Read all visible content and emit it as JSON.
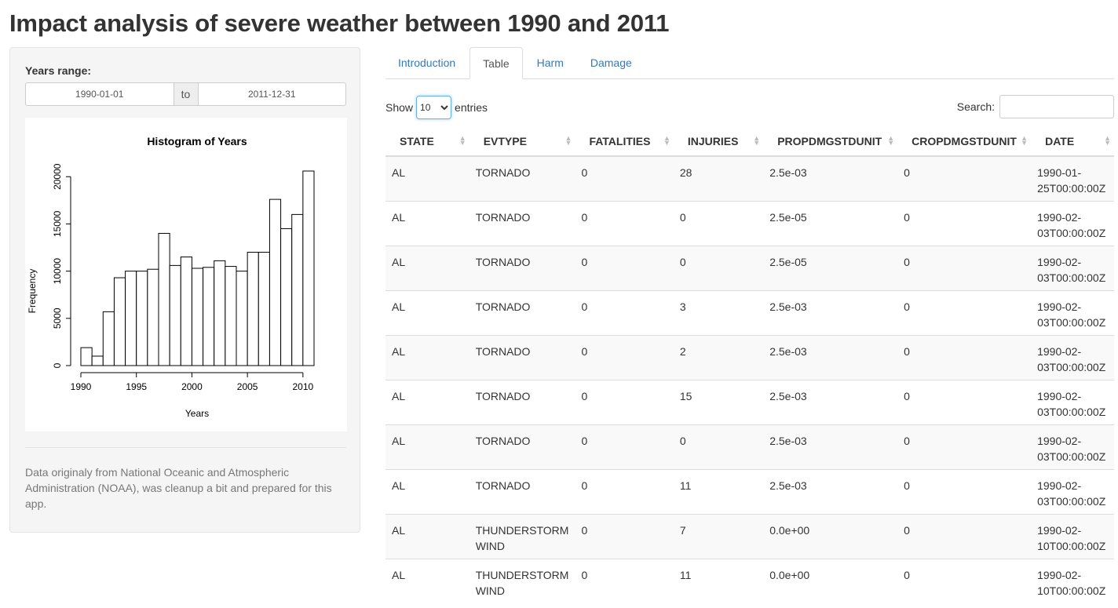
{
  "title": "Impact analysis of severe weather between 1990 and 2011",
  "sidebar": {
    "years_label": "Years range:",
    "start_date": "1990-01-01",
    "separator": "to",
    "end_date": "2011-12-31",
    "note": "Data originaly from National Oceanic and Atmospheric Administration (NOAA), was cleanup a bit and prepared for this app."
  },
  "tabs": [
    {
      "label": "Introduction",
      "active": false
    },
    {
      "label": "Table",
      "active": true
    },
    {
      "label": "Harm",
      "active": false
    },
    {
      "label": "Damage",
      "active": false
    }
  ],
  "controls": {
    "show_label": "Show",
    "page_length": "10",
    "entries_label": "entries",
    "search_label": "Search:",
    "search_value": ""
  },
  "table": {
    "columns": [
      "STATE",
      "EVTYPE",
      "FATALITIES",
      "INJURIES",
      "PROPDMGSTDUNIT",
      "CROPDMGSTDUNIT",
      "DATE"
    ],
    "rows": [
      [
        "AL",
        "TORNADO",
        "0",
        "28",
        "2.5e-03",
        "0",
        "1990-01-25T00:00:00Z"
      ],
      [
        "AL",
        "TORNADO",
        "0",
        "0",
        "2.5e-05",
        "0",
        "1990-02-03T00:00:00Z"
      ],
      [
        "AL",
        "TORNADO",
        "0",
        "0",
        "2.5e-05",
        "0",
        "1990-02-03T00:00:00Z"
      ],
      [
        "AL",
        "TORNADO",
        "0",
        "3",
        "2.5e-03",
        "0",
        "1990-02-03T00:00:00Z"
      ],
      [
        "AL",
        "TORNADO",
        "0",
        "2",
        "2.5e-03",
        "0",
        "1990-02-03T00:00:00Z"
      ],
      [
        "AL",
        "TORNADO",
        "0",
        "15",
        "2.5e-03",
        "0",
        "1990-02-03T00:00:00Z"
      ],
      [
        "AL",
        "TORNADO",
        "0",
        "0",
        "2.5e-03",
        "0",
        "1990-02-03T00:00:00Z"
      ],
      [
        "AL",
        "TORNADO",
        "0",
        "11",
        "2.5e-03",
        "0",
        "1990-02-03T00:00:00Z"
      ],
      [
        "AL",
        "THUNDERSTORM WIND",
        "0",
        "7",
        "0.0e+00",
        "0",
        "1990-02-10T00:00:00Z"
      ],
      [
        "AL",
        "THUNDERSTORM WIND",
        "0",
        "11",
        "0.0e+00",
        "0",
        "1990-02-10T00:00:00Z"
      ]
    ]
  },
  "chart_data": {
    "type": "bar",
    "title": "Histogram of Years",
    "xlabel": "Years",
    "ylabel": "Frequency",
    "bin_edges": [
      1990,
      1991,
      1992,
      1993,
      1994,
      1995,
      1996,
      1997,
      1998,
      1999,
      2000,
      2001,
      2002,
      2003,
      2004,
      2005,
      2006,
      2007,
      2008,
      2009,
      2010,
      2011
    ],
    "values": [
      1900,
      1000,
      5700,
      9300,
      10000,
      10000,
      10200,
      14000,
      10600,
      11500,
      10300,
      10400,
      11100,
      10500,
      10000,
      12000,
      12000,
      17600,
      14500,
      16000,
      20600
    ],
    "xticks": [
      1990,
      1995,
      2000,
      2005,
      2010
    ],
    "yticks": [
      0,
      5000,
      10000,
      15000,
      20000
    ],
    "xlim": [
      1990,
      2011
    ],
    "ylim": [
      0,
      20600
    ],
    "grid": false,
    "bar_fill": "#ffffff",
    "bar_stroke": "#000000"
  }
}
